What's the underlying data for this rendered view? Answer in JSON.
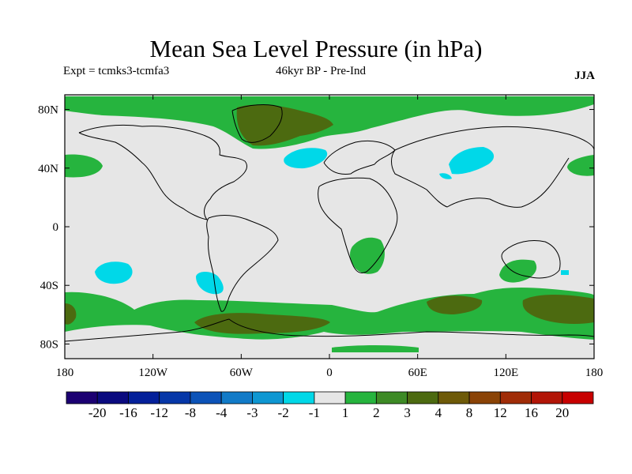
{
  "title": "Mean Sea Level Pressure (in hPa)",
  "experiment": "Expt = tcmks3-tcmfa3",
  "period": "46kyr BP - Pre-Ind",
  "season": "JJA",
  "map": {
    "projection": "cylindrical equidistant",
    "lon_range": [
      -180,
      180
    ],
    "lat_range": [
      -90,
      90
    ],
    "lon_ticks": [
      {
        "value": -180,
        "label": "180"
      },
      {
        "value": -120,
        "label": "120W"
      },
      {
        "value": -60,
        "label": "60W"
      },
      {
        "value": 0,
        "label": "0"
      },
      {
        "value": 60,
        "label": "60E"
      },
      {
        "value": 120,
        "label": "120E"
      },
      {
        "value": 180,
        "label": "180"
      }
    ],
    "lat_ticks": [
      {
        "value": 80,
        "label": "80N"
      },
      {
        "value": 40,
        "label": "40N"
      },
      {
        "value": 0,
        "label": "0"
      },
      {
        "value": -40,
        "label": "40S"
      },
      {
        "value": -80,
        "label": "80S"
      }
    ],
    "background_color": "#e6e6e6",
    "coastline_color": "#000000"
  },
  "colorbar": {
    "labels": [
      "-20",
      "-16",
      "-12",
      "-8",
      "-4",
      "-3",
      "-2",
      "-1",
      "1",
      "2",
      "3",
      "4",
      "8",
      "12",
      "16",
      "20"
    ],
    "colors": [
      "#1c0072",
      "#0a0a7f",
      "#04209a",
      "#0637a8",
      "#0c53b8",
      "#127bc8",
      "#0e97d2",
      "#00d8e8",
      "#e6e6e6",
      "#26b43e",
      "#3d8a25",
      "#4c6a10",
      "#6e5a08",
      "#8a4306",
      "#a02c07",
      "#b21507",
      "#c80000"
    ]
  },
  "anomaly_regions": [
    {
      "name": "arctic-greenland-high",
      "level": "2",
      "color": "#26b43e"
    },
    {
      "name": "greenland-core",
      "level": "3",
      "color": "#4c6a10"
    },
    {
      "name": "north-atlantic-low",
      "level": "-1",
      "color": "#00d8e8"
    },
    {
      "name": "central-asia-low",
      "level": "-1",
      "color": "#00d8e8"
    },
    {
      "name": "southern-africa-high",
      "level": "2",
      "color": "#26b43e"
    },
    {
      "name": "south-pacific-low",
      "level": "-1",
      "color": "#00d8e8"
    },
    {
      "name": "southern-ocean-high",
      "level": "2",
      "color": "#26b43e"
    },
    {
      "name": "southern-ocean-core",
      "level": "3",
      "color": "#4c6a10"
    }
  ]
}
